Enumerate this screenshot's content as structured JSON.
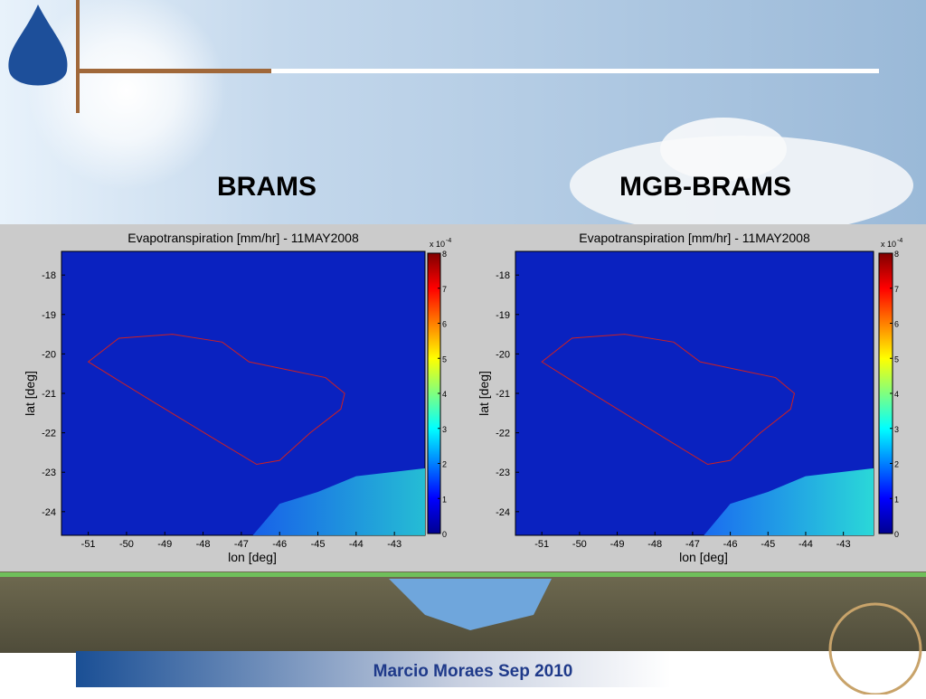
{
  "header": {
    "left_title": "BRAMS",
    "right_title": "MGB-BRAMS"
  },
  "chart_data": [
    {
      "type": "heatmap",
      "title": "Evapotranspiration [mm/hr] - 11MAY2008",
      "xlabel": "lon [deg]",
      "ylabel": "lat [deg]",
      "xlim": [
        -51.7,
        -42.2
      ],
      "ylim": [
        -24.6,
        -17.4
      ],
      "xticks": [
        -51,
        -50,
        -49,
        -48,
        -47,
        -46,
        -45,
        -44,
        -43
      ],
      "yticks": [
        -18,
        -19,
        -20,
        -21,
        -22,
        -23,
        -24
      ],
      "colorbar": {
        "clim": [
          0,
          8
        ],
        "ticks": [
          0,
          1,
          2,
          3,
          4,
          5,
          6,
          7,
          8
        ],
        "scale_base": "x 10",
        "scale_exponent": "-4"
      }
    },
    {
      "type": "heatmap",
      "title": "Evapotranspiration [mm/hr] - 11MAY2008",
      "xlabel": "lon [deg]",
      "ylabel": "lat [deg]",
      "xlim": [
        -51.7,
        -42.2
      ],
      "ylim": [
        -24.6,
        -17.4
      ],
      "xticks": [
        -51,
        -50,
        -49,
        -48,
        -47,
        -46,
        -45,
        -44,
        -43
      ],
      "yticks": [
        -18,
        -19,
        -20,
        -21,
        -22,
        -23,
        -24
      ],
      "colorbar": {
        "clim": [
          0,
          8
        ],
        "ticks": [
          0,
          1,
          2,
          3,
          4,
          5,
          6,
          7,
          8
        ],
        "scale_base": "x 10",
        "scale_exponent": "-4"
      }
    }
  ],
  "footer": {
    "author": "Marcio Moraes Sep 2010"
  }
}
